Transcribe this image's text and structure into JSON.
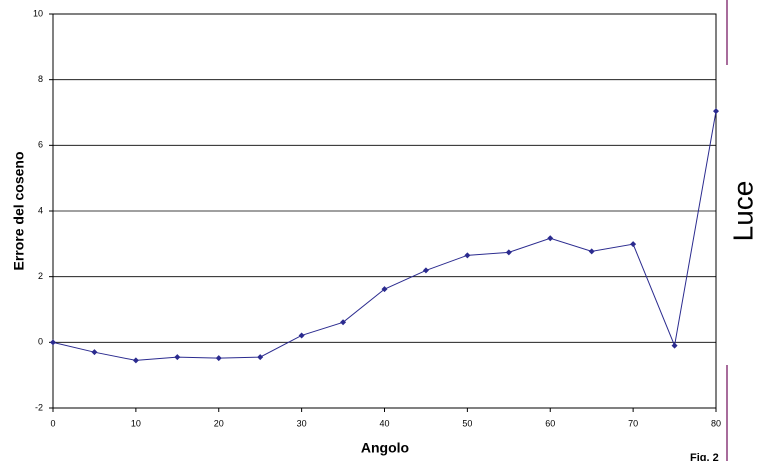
{
  "chart_data": {
    "type": "line",
    "xlabel": "Angolo",
    "ylabel": "Errore del coseno",
    "annotations": [
      "Luce",
      "Fig. 2"
    ],
    "x": [
      0,
      5,
      10,
      15,
      20,
      25,
      30,
      35,
      40,
      45,
      50,
      55,
      60,
      65,
      70,
      75,
      80
    ],
    "series": [
      {
        "name": "Errore del coseno",
        "color": "#2b2b8f",
        "values": [
          0,
          -0.3,
          -0.55,
          -0.45,
          -0.48,
          -0.45,
          0.21,
          0.61,
          1.62,
          2.19,
          2.65,
          2.74,
          3.17,
          2.77,
          2.99,
          -0.1,
          7.04
        ]
      }
    ],
    "xlim": [
      0,
      80
    ],
    "xticks": [
      0,
      10,
      20,
      30,
      40,
      50,
      60,
      70,
      80
    ],
    "ylim": [
      -2,
      10
    ],
    "yticks": [
      -2,
      0,
      2,
      4,
      6,
      8,
      10
    ],
    "grid": true
  }
}
